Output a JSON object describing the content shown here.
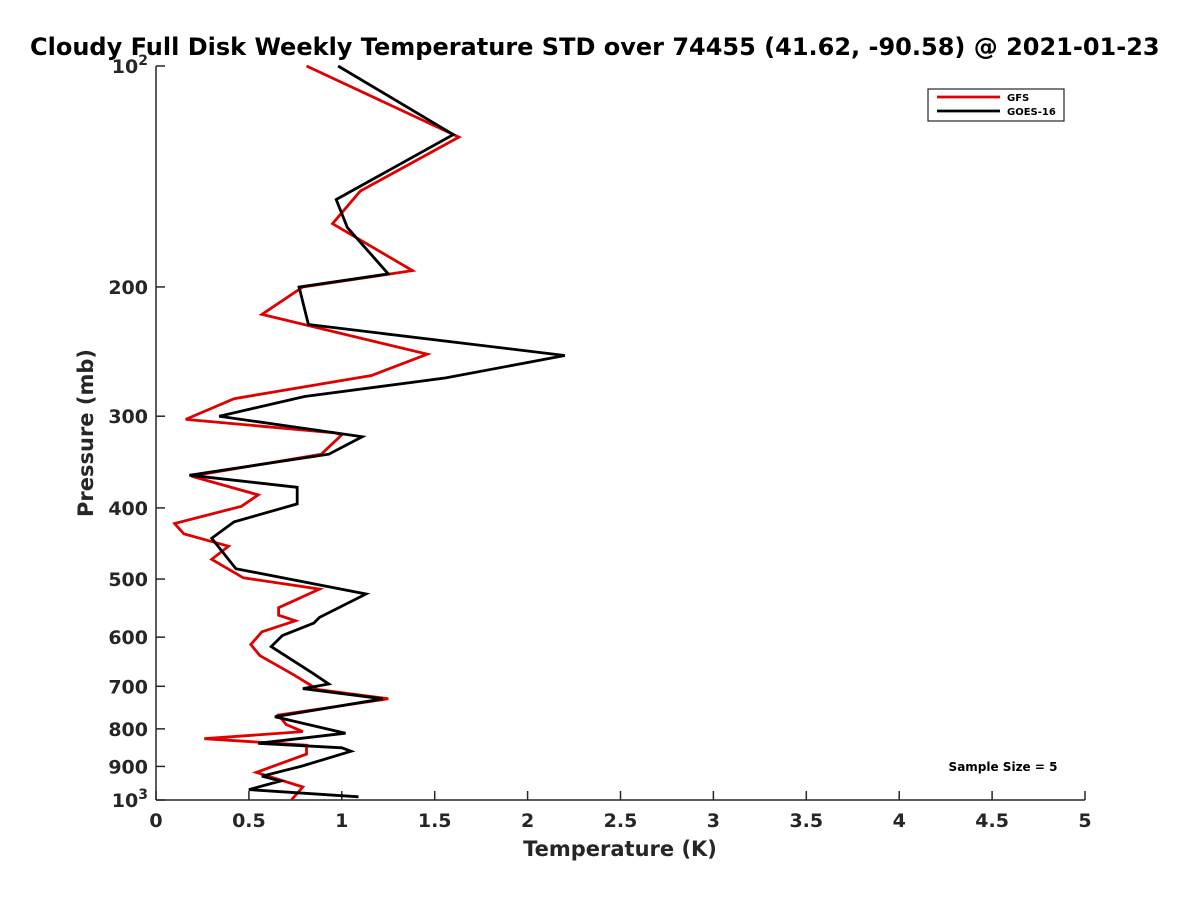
{
  "chart_data": {
    "type": "line",
    "title": "Cloudy Full Disk Weekly Temperature STD over 74455 (41.62, -90.58) @ 2021-01-23",
    "xlabel": "Temperature (K)",
    "ylabel": "Pressure (mb)",
    "xlim": [
      0,
      5
    ],
    "ylim": [
      100,
      1000
    ],
    "y_scale": "log",
    "y_reversed": true,
    "x_ticks": [
      "0",
      "0.5",
      "1",
      "1.5",
      "2",
      "2.5",
      "3",
      "3.5",
      "4",
      "4.5",
      "5"
    ],
    "x_tick_values": [
      0,
      0.5,
      1,
      1.5,
      2,
      2.5,
      3,
      3.5,
      4,
      4.5,
      5
    ],
    "y_ticks": [
      {
        "value": 100,
        "label": "10",
        "sup": "2"
      },
      {
        "value": 200,
        "label": "200",
        "sup": ""
      },
      {
        "value": 300,
        "label": "300",
        "sup": ""
      },
      {
        "value": 400,
        "label": "400",
        "sup": ""
      },
      {
        "value": 500,
        "label": "500",
        "sup": ""
      },
      {
        "value": 600,
        "label": "600",
        "sup": ""
      },
      {
        "value": 700,
        "label": "700",
        "sup": ""
      },
      {
        "value": 800,
        "label": "800",
        "sup": ""
      },
      {
        "value": 900,
        "label": "900",
        "sup": ""
      },
      {
        "value": 1000,
        "label": "10",
        "sup": "3"
      }
    ],
    "grid": false,
    "legend_position": "top-right",
    "annotation": "Sample Size = 5",
    "series": [
      {
        "name": "GFS",
        "color": "#e00000",
        "points": [
          [
            0.81,
            100
          ],
          [
            1.63,
            125
          ],
          [
            1.1,
            148
          ],
          [
            0.95,
            164
          ],
          [
            1.38,
            190
          ],
          [
            0.79,
            200
          ],
          [
            0.57,
            218
          ],
          [
            1.46,
            247
          ],
          [
            1.16,
            264
          ],
          [
            0.42,
            284
          ],
          [
            0.16,
            303
          ],
          [
            0.96,
            316
          ],
          [
            1.0,
            318
          ],
          [
            0.89,
            338
          ],
          [
            0.19,
            362
          ],
          [
            0.55,
            384
          ],
          [
            0.46,
            398
          ],
          [
            0.1,
            420
          ],
          [
            0.15,
            434
          ],
          [
            0.39,
            451
          ],
          [
            0.3,
            470
          ],
          [
            0.47,
            498
          ],
          [
            0.88,
            516
          ],
          [
            0.66,
            547
          ],
          [
            0.66,
            560
          ],
          [
            0.75,
            570
          ],
          [
            0.57,
            590
          ],
          [
            0.51,
            614
          ],
          [
            0.56,
            636
          ],
          [
            0.74,
            675
          ],
          [
            0.87,
            707
          ],
          [
            1.25,
            728
          ],
          [
            0.66,
            766
          ],
          [
            0.7,
            789
          ],
          [
            0.79,
            807
          ],
          [
            0.26,
            825
          ],
          [
            0.81,
            842
          ],
          [
            0.81,
            866
          ],
          [
            0.54,
            917
          ],
          [
            0.79,
            960
          ],
          [
            0.73,
            999
          ]
        ]
      },
      {
        "name": "GOES-16",
        "color": "#000000",
        "points": [
          [
            0.98,
            100
          ],
          [
            1.6,
            124
          ],
          [
            0.97,
            152
          ],
          [
            1.03,
            166
          ],
          [
            1.25,
            192
          ],
          [
            0.77,
            200
          ],
          [
            0.82,
            225
          ],
          [
            2.2,
            248
          ],
          [
            1.56,
            266
          ],
          [
            0.8,
            282
          ],
          [
            0.34,
            300
          ],
          [
            1.11,
            320
          ],
          [
            0.93,
            338
          ],
          [
            0.18,
            361
          ],
          [
            0.76,
            375
          ],
          [
            0.76,
            395
          ],
          [
            0.42,
            418
          ],
          [
            0.3,
            440
          ],
          [
            0.43,
            484
          ],
          [
            1.13,
            524
          ],
          [
            0.88,
            564
          ],
          [
            0.85,
            574
          ],
          [
            0.68,
            597
          ],
          [
            0.62,
            618
          ],
          [
            0.84,
            671
          ],
          [
            0.93,
            695
          ],
          [
            0.79,
            705
          ],
          [
            1.22,
            728
          ],
          [
            0.64,
            770
          ],
          [
            1.02,
            811
          ],
          [
            0.55,
            837
          ],
          [
            1.0,
            849
          ],
          [
            1.05,
            858
          ],
          [
            0.78,
            900
          ],
          [
            0.57,
            928
          ],
          [
            0.67,
            942
          ],
          [
            0.5,
            968
          ],
          [
            1.09,
            990
          ]
        ]
      }
    ]
  }
}
